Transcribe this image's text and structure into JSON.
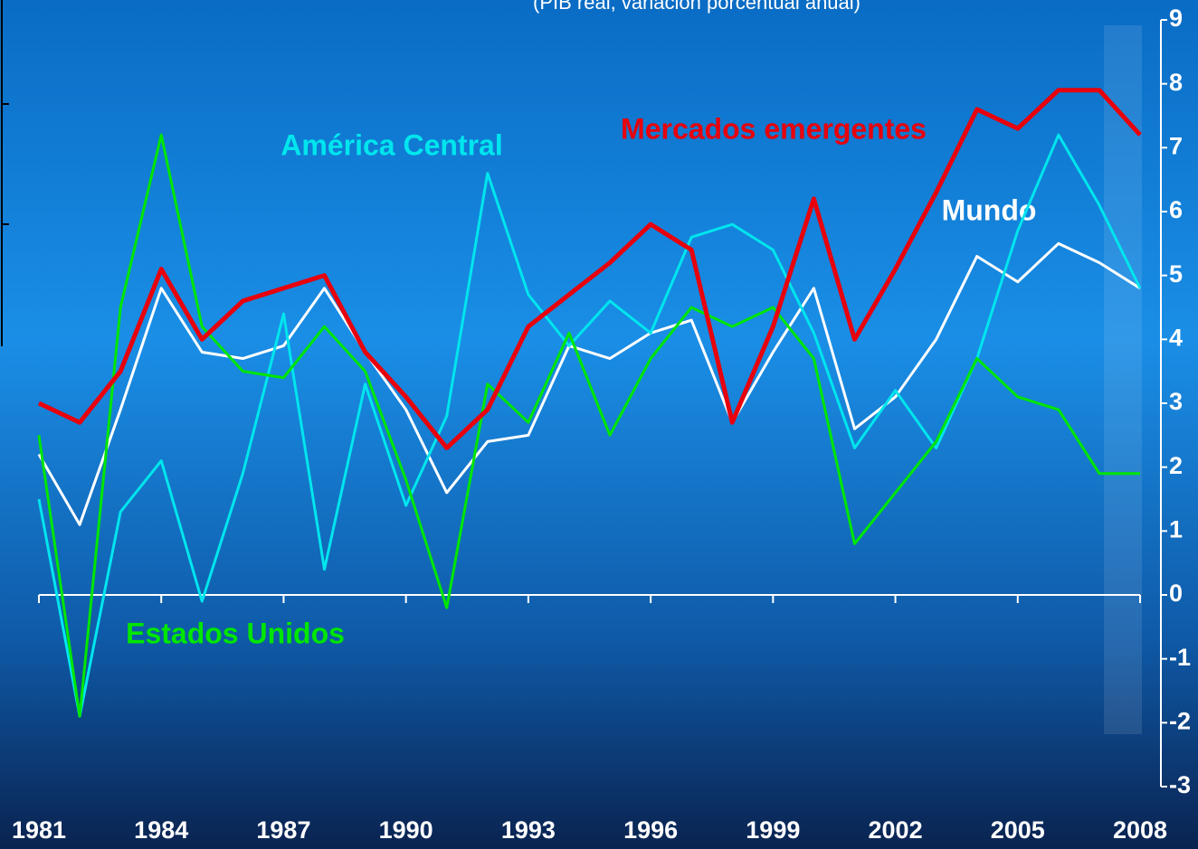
{
  "chart_data": {
    "type": "line",
    "subtitle": "(PIB real, variación porcentual anual)",
    "x": [
      1981,
      1982,
      1983,
      1984,
      1985,
      1986,
      1987,
      1988,
      1989,
      1990,
      1991,
      1992,
      1993,
      1994,
      1995,
      1996,
      1997,
      1998,
      1999,
      2000,
      2001,
      2002,
      2003,
      2004,
      2005,
      2006,
      2007,
      2008
    ],
    "xlim": [
      1981,
      2008
    ],
    "xticks": [
      1981,
      1984,
      1987,
      1990,
      1993,
      1996,
      1999,
      2002,
      2005,
      2008
    ],
    "ylim": [
      -3,
      9
    ],
    "yticks": [
      -3,
      -2,
      -1,
      0,
      1,
      2,
      3,
      4,
      5,
      6,
      7,
      8,
      9
    ],
    "series": [
      {
        "name": "Mercados emergentes",
        "color": "#e8000b",
        "values": [
          3.0,
          2.7,
          3.5,
          5.1,
          4.0,
          4.6,
          4.8,
          5.0,
          3.8,
          3.1,
          2.3,
          2.9,
          4.2,
          4.7,
          5.2,
          5.8,
          5.4,
          2.7,
          4.2,
          6.2,
          4.0,
          5.1,
          6.3,
          7.6,
          7.3,
          7.9,
          7.9,
          7.2
        ]
      },
      {
        "name": "Mundo",
        "color": "#ffffff",
        "values": [
          2.2,
          1.1,
          2.9,
          4.8,
          3.8,
          3.7,
          3.9,
          4.8,
          3.8,
          2.9,
          1.6,
          2.4,
          2.5,
          3.9,
          3.7,
          4.1,
          4.3,
          2.7,
          3.8,
          4.8,
          2.6,
          3.1,
          4.0,
          5.3,
          4.9,
          5.5,
          5.2,
          4.8
        ]
      },
      {
        "name": "América Central",
        "color": "#00e5ee",
        "values": [
          1.5,
          -1.9,
          1.3,
          2.1,
          -0.1,
          1.9,
          4.4,
          0.4,
          3.3,
          1.4,
          2.8,
          6.6,
          4.7,
          3.9,
          4.6,
          4.1,
          5.6,
          5.8,
          5.4,
          4.1,
          2.3,
          3.2,
          2.3,
          3.7,
          5.7,
          7.2,
          6.1,
          4.8
        ]
      },
      {
        "name": "Estados Unidos",
        "color": "#00e600",
        "values": [
          2.5,
          -1.9,
          4.5,
          7.2,
          4.2,
          3.5,
          3.4,
          4.2,
          3.5,
          1.8,
          -0.2,
          3.3,
          2.7,
          4.1,
          2.5,
          3.7,
          4.5,
          4.2,
          4.5,
          3.7,
          0.8,
          1.6,
          2.4,
          3.7,
          3.1,
          2.9,
          1.9,
          1.9
        ]
      }
    ]
  }
}
